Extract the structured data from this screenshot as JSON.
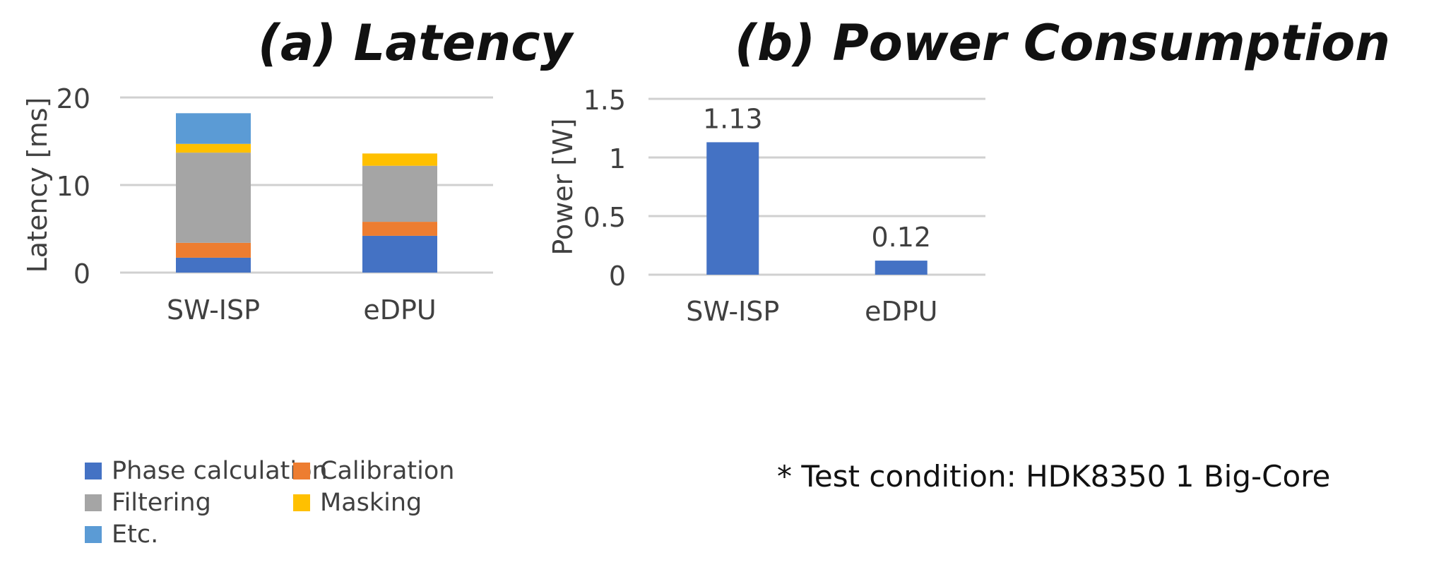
{
  "chart_data": [
    {
      "type": "bar",
      "stacked": true,
      "title": "(a) Latency",
      "ylabel": "Latency [ms]",
      "xlabel": "",
      "categories": [
        "SW-ISP",
        "eDPU"
      ],
      "ylim": [
        0,
        20
      ],
      "yticks": [
        0,
        10,
        20
      ],
      "grid": true,
      "legend_position": "bottom",
      "series": [
        {
          "name": "Phase calculation",
          "color": "#4472C4",
          "values": [
            1.7,
            4.2
          ]
        },
        {
          "name": "Calibration",
          "color": "#ED7D31",
          "values": [
            1.7,
            1.6
          ]
        },
        {
          "name": "Filtering",
          "color": "#A5A5A5",
          "values": [
            10.3,
            6.4
          ]
        },
        {
          "name": "Masking",
          "color": "#FFC000",
          "values": [
            1.0,
            1.4
          ]
        },
        {
          "name": "Etc.",
          "color": "#5B9BD5",
          "values": [
            3.5,
            0
          ]
        }
      ]
    },
    {
      "type": "bar",
      "title": "(b) Power Consumption",
      "ylabel": "Power [W]",
      "xlabel": "",
      "categories": [
        "SW-ISP",
        "eDPU"
      ],
      "ylim": [
        0,
        1.5
      ],
      "yticks": [
        "0",
        "0.5",
        "1",
        "1.5"
      ],
      "grid": true,
      "series": [
        {
          "color": "#4472C4",
          "values": [
            1.13,
            0.12
          ],
          "labels": [
            "1.13",
            "0.12"
          ]
        }
      ],
      "footnote": "* Test condition: HDK8350 1 Big-Core"
    }
  ]
}
